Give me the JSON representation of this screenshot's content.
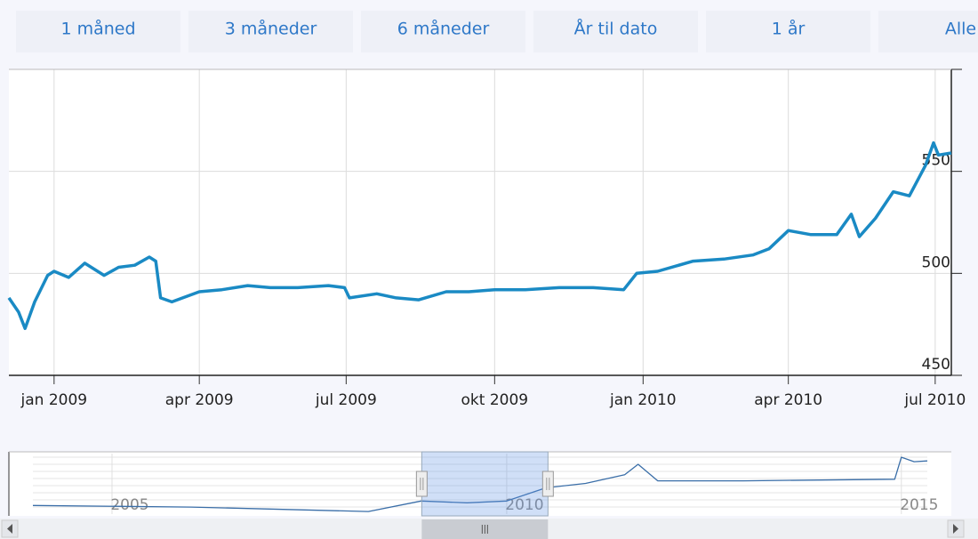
{
  "range_buttons": [
    "1 måned",
    "3 måneder",
    "6 måneder",
    "År til dato",
    "1 år",
    "Alle"
  ],
  "chart_data": {
    "type": "line",
    "x": [
      "2008-12-04",
      "2008-12-10",
      "2008-12-14",
      "2008-12-20",
      "2008-12-28",
      "2009-01-01",
      "2009-01-10",
      "2009-01-20",
      "2009-02-01",
      "2009-02-10",
      "2009-02-20",
      "2009-03-01",
      "2009-03-05",
      "2009-03-08",
      "2009-03-15",
      "2009-04-01",
      "2009-04-15",
      "2009-05-01",
      "2009-05-15",
      "2009-06-01",
      "2009-06-20",
      "2009-06-30",
      "2009-07-03",
      "2009-07-20",
      "2009-08-01",
      "2009-08-15",
      "2009-09-01",
      "2009-09-15",
      "2009-10-01",
      "2009-10-20",
      "2009-11-10",
      "2009-12-01",
      "2009-12-20",
      "2009-12-28",
      "2010-01-10",
      "2010-02-01",
      "2010-02-20",
      "2010-03-10",
      "2010-03-20",
      "2010-04-01",
      "2010-04-15",
      "2010-05-01",
      "2010-05-10",
      "2010-05-15",
      "2010-05-25",
      "2010-06-05",
      "2010-06-15",
      "2010-06-25",
      "2010-06-30",
      "2010-07-03",
      "2010-07-11"
    ],
    "series": [
      {
        "color": "#1a8ac4",
        "values": [
          488,
          481,
          473,
          486,
          499,
          501,
          498,
          505,
          499,
          503,
          504,
          508,
          506,
          488,
          486,
          491,
          492,
          494,
          493,
          493,
          494,
          493,
          488,
          490,
          488,
          487,
          491,
          491,
          492,
          492,
          493,
          493,
          492,
          500,
          501,
          506,
          507,
          509,
          512,
          521,
          519,
          519,
          529,
          518,
          527,
          540,
          538,
          553,
          564,
          558,
          559
        ]
      }
    ],
    "xlim": [
      "2008-12-04",
      "2010-07-11"
    ],
    "xticks": [
      {
        "value": "2009-01-01",
        "label": "jan 2009"
      },
      {
        "value": "2009-04-01",
        "label": "apr 2009"
      },
      {
        "value": "2009-07-01",
        "label": "jul 2009"
      },
      {
        "value": "2009-10-01",
        "label": "okt 2009"
      },
      {
        "value": "2010-01-01",
        "label": "jan 2010"
      },
      {
        "value": "2010-04-01",
        "label": "apr 2010"
      },
      {
        "value": "2010-07-01",
        "label": "jul 2010"
      }
    ],
    "ylim": [
      450,
      600
    ],
    "yticks": [
      450,
      500,
      550
    ],
    "grid": true
  },
  "navigator": {
    "type": "line",
    "x": [
      "2004-01",
      "2006-01",
      "2008-04",
      "2008-12",
      "2009-07",
      "2010-01",
      "2010-07",
      "2011-01",
      "2011-07",
      "2011-09",
      "2011-12",
      "2013-01",
      "2014-12",
      "2015-01",
      "2015-03",
      "2015-05"
    ],
    "values": [
      473,
      465,
      443,
      495,
      486,
      495,
      560,
      582,
      625,
      677,
      595,
      595,
      603,
      712,
      690,
      694
    ],
    "color": "#3a6ea8",
    "xlim": [
      "2004-01",
      "2015-05"
    ],
    "ylim": [
      430,
      730
    ],
    "xticks": [
      {
        "value": "2005-01",
        "label": "2005"
      },
      {
        "value": "2010-01",
        "label": "2010"
      },
      {
        "value": "2015-01",
        "label": "2015"
      }
    ]
  }
}
